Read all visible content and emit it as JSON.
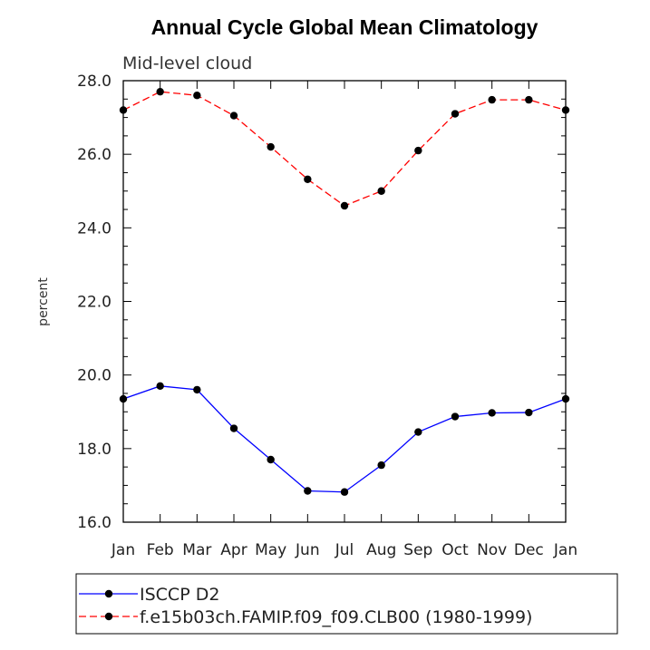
{
  "chart_data": {
    "type": "line",
    "title": "Annual Cycle Global Mean Climatology",
    "subtitle": "Mid-level cloud",
    "xlabel": "",
    "ylabel": "percent",
    "categories": [
      "Jan",
      "Feb",
      "Mar",
      "Apr",
      "May",
      "Jun",
      "Jul",
      "Aug",
      "Sep",
      "Oct",
      "Nov",
      "Dec",
      "Jan"
    ],
    "ylim": [
      16.0,
      28.0
    ],
    "yticks": [
      "16.0",
      "18.0",
      "20.0",
      "22.0",
      "24.0",
      "26.0",
      "28.0"
    ],
    "grid": false,
    "legend_position": "bottom",
    "series": [
      {
        "name": "ISCCP D2",
        "color": "#0000ff",
        "dash": "solid",
        "marker": "circle",
        "values": [
          19.35,
          19.7,
          19.6,
          18.55,
          17.7,
          16.85,
          16.82,
          17.55,
          18.45,
          18.87,
          18.97,
          18.98,
          19.35
        ]
      },
      {
        "name": "f.e15b03ch.FAMIP.f09_f09.CLB00 (1980-1999)",
        "color": "#ff0000",
        "dash": "dashed",
        "marker": "circle",
        "values": [
          27.2,
          27.7,
          27.6,
          27.05,
          26.2,
          25.32,
          24.6,
          25.0,
          26.1,
          27.1,
          27.48,
          27.48,
          27.2
        ]
      }
    ]
  }
}
